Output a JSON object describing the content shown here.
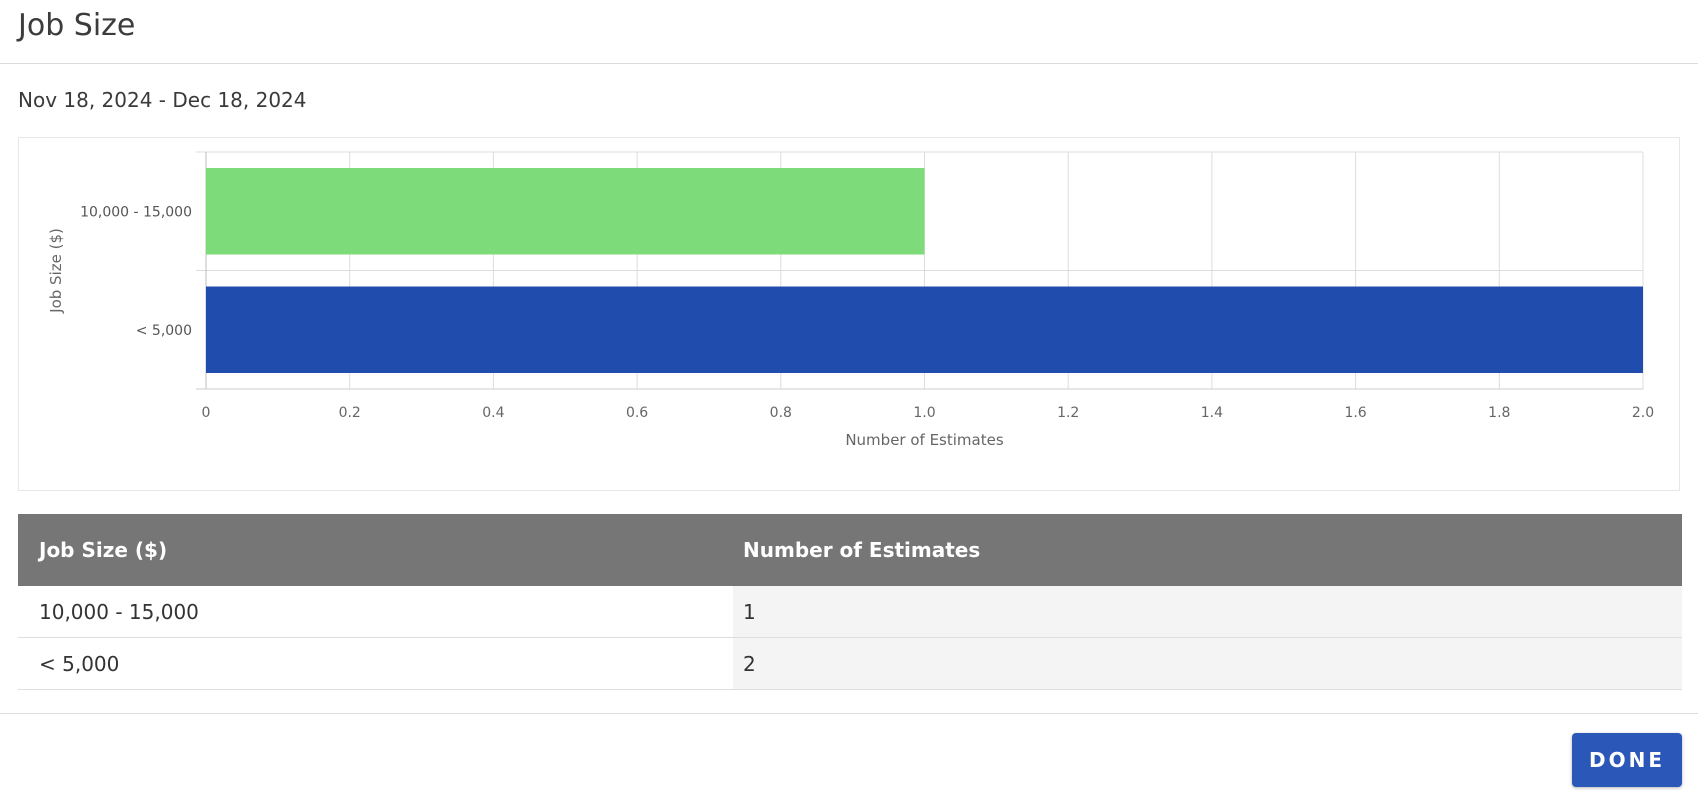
{
  "dialog": {
    "title": "Job Size",
    "date_range": "Nov 18, 2024 - Dec 18, 2024",
    "done_label": "DONE"
  },
  "chart_data": {
    "type": "bar",
    "orientation": "horizontal",
    "categories": [
      "10,000 - 15,000",
      "< 5,000"
    ],
    "values": [
      1,
      2
    ],
    "bar_colors": [
      "#7edb7a",
      "#1f4cad"
    ],
    "xlabel": "Number of Estimates",
    "ylabel": "Job Size ($)",
    "xlim": [
      0,
      2.0
    ],
    "xticks": [
      "0",
      "0.2",
      "0.4",
      "0.6",
      "0.8",
      "1.0",
      "1.2",
      "1.4",
      "1.6",
      "1.8",
      "2.0"
    ],
    "grid": true,
    "legend": "none"
  },
  "table": {
    "headers": [
      "Job Size ($)",
      "Number of Estimates"
    ],
    "rows": [
      [
        "10,000 - 15,000",
        "1"
      ],
      [
        "< 5,000",
        "2"
      ]
    ]
  },
  "colors": {
    "primary_button": "#2b58b8",
    "table_header": "#767676"
  }
}
